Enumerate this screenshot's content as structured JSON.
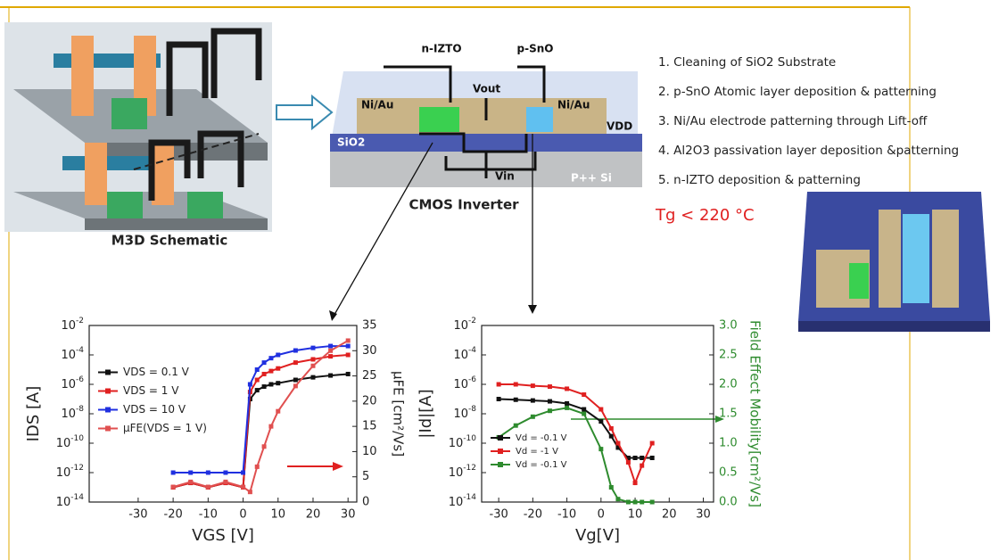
{
  "slide": {
    "m3d_label": "M3D Schematic",
    "cmos_label": "CMOS Inverter",
    "device_labels": {
      "n_layer": "n-IZTO",
      "p_layer": "p-SnO",
      "vout": "Vout",
      "left_contact": "Ni/Au",
      "right_contact": "Ni/Au",
      "vdd": "VDD",
      "oxide": "SiO2",
      "vin": "Vin",
      "substrate": "P++ Si"
    },
    "steps": [
      "1. Cleaning of SiO2 Substrate",
      "2. p-SnO Atomic layer deposition & patterning",
      "3. Ni/Au electrode patterning through Lift-off",
      "4. Al2O3 passivation layer deposition &patterning",
      "5. n-IZTO deposition & patterning"
    ],
    "condition": "Tg < 220 °C"
  },
  "chart_data": [
    {
      "type": "line",
      "xlabel": "VGS [V]",
      "ylabel": "IDS [A]",
      "y2label": "μFE [cm²/Vs]",
      "y2_color": "#222222",
      "x": [
        -20,
        -15,
        -10,
        -5,
        0,
        2,
        4,
        6,
        8,
        10,
        15,
        20,
        25,
        30
      ],
      "xlim": [
        -44,
        32.5
      ],
      "xticks": [
        -30,
        -20,
        -10,
        0,
        10,
        20,
        30
      ],
      "ylog": true,
      "ylim": [
        1e-14,
        0.01
      ],
      "yticks": [
        {
          "value": 1e-14,
          "label": "10-14"
        },
        {
          "value": 1e-12,
          "label": "10-12"
        },
        {
          "value": 1e-10,
          "label": "10-10"
        },
        {
          "value": 1e-08,
          "label": "10-8"
        },
        {
          "value": 1e-06,
          "label": "10-6"
        },
        {
          "value": 0.0001,
          "label": "10-4"
        },
        {
          "value": 0.01,
          "label": "10-2"
        }
      ],
      "y2lim": [
        0,
        35
      ],
      "y2ticks": [
        0,
        5,
        10,
        15,
        20,
        25,
        30,
        35
      ],
      "legend": "center left",
      "series": [
        {
          "name": "VDS = 0.1 V",
          "color": "#111111",
          "values": [
            1e-13,
            2e-13,
            1e-13,
            2e-13,
            1e-13,
            1e-07,
            4e-07,
            7e-07,
            1e-06,
            1.2e-06,
            2e-06,
            3e-06,
            4e-06,
            5e-06
          ]
        },
        {
          "name": "VDS = 1 V",
          "color": "#e02020",
          "values": [
            1e-13,
            2e-13,
            1e-13,
            2e-13,
            1e-13,
            3e-07,
            2e-06,
            5e-06,
            8e-06,
            1.2e-05,
            3e-05,
            5e-05,
            8e-05,
            0.0001
          ]
        },
        {
          "name": "VDS = 10 V",
          "color": "#2030e0",
          "values": [
            1e-12,
            1e-12,
            1e-12,
            1e-12,
            1e-12,
            1e-06,
            1e-05,
            3e-05,
            6e-05,
            0.0001,
            0.0002,
            0.0003,
            0.0004,
            0.0004
          ]
        },
        {
          "name": "μFE(VDS = 1 V)",
          "color": "#e05050",
          "axis": "y2",
          "values": [
            3,
            4,
            3,
            4,
            3,
            2,
            7,
            11,
            15,
            18,
            23,
            27,
            30,
            32
          ]
        }
      ]
    },
    {
      "type": "line",
      "xlabel": "Vg[V]",
      "ylabel": "|Id|[A]",
      "y2label": "Field Effect Mobility[cm²/Vs]",
      "y2_color": "#2e8b2e",
      "x": [
        -30,
        -25,
        -20,
        -15,
        -10,
        -5,
        0,
        3,
        5,
        8,
        10,
        12,
        15
      ],
      "xlim": [
        -35,
        33
      ],
      "xticks": [
        -30,
        -20,
        -10,
        0,
        10,
        20,
        30
      ],
      "ylog": true,
      "ylim": [
        1e-14,
        0.01
      ],
      "yticks": [
        {
          "value": 1e-14,
          "label": "10-14"
        },
        {
          "value": 1e-12,
          "label": "10-12"
        },
        {
          "value": 1e-10,
          "label": "10-10"
        },
        {
          "value": 1e-08,
          "label": "10-8"
        },
        {
          "value": 1e-06,
          "label": "10-6"
        },
        {
          "value": 0.0001,
          "label": "10-4"
        },
        {
          "value": 0.01,
          "label": "10-2"
        }
      ],
      "y2lim": [
        0,
        3
      ],
      "y2ticks": [
        {
          "value": 0,
          "label": "0.0"
        },
        0.5,
        {
          "value": 1,
          "label": "1.0"
        },
        1.5,
        {
          "value": 2,
          "label": "2.0"
        },
        2.5,
        {
          "value": 3,
          "label": "3.0"
        }
      ],
      "legend": "lower left",
      "series": [
        {
          "name": "Vd = -0.1 V",
          "color": "#111111",
          "values": [
            1e-07,
            9e-08,
            8e-08,
            7e-08,
            5e-08,
            2e-08,
            3e-09,
            3e-10,
            5e-11,
            1e-11,
            1e-11,
            1e-11,
            1e-11
          ]
        },
        {
          "name": "Vd = -1 V",
          "color": "#e02020",
          "values": [
            1e-06,
            1e-06,
            8e-07,
            7e-07,
            5e-07,
            2e-07,
            2e-08,
            1e-09,
            1e-10,
            5e-12,
            2e-13,
            3e-12,
            1e-10
          ]
        },
        {
          "name": "Vd = -0.1 V",
          "color": "#2e8b2e",
          "axis": "y2",
          "values": [
            1.1,
            1.3,
            1.45,
            1.55,
            1.6,
            1.5,
            0.9,
            0.25,
            0.05,
            0,
            0,
            0,
            0
          ]
        }
      ]
    }
  ]
}
